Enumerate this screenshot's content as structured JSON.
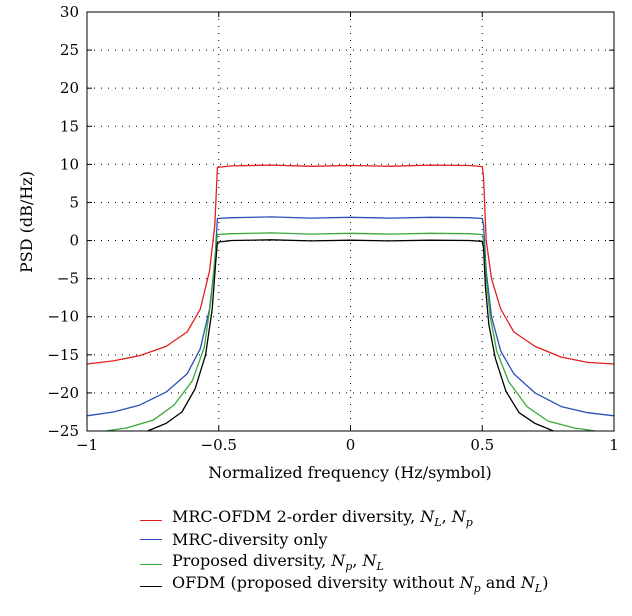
{
  "chart_data": {
    "type": "line",
    "title": "",
    "xlabel": "Normalized frequency (Hz/symbol)",
    "ylabel": "PSD (dB/Hz)",
    "xlim": [
      -1,
      1
    ],
    "ylim": [
      -25,
      30
    ],
    "xticks": [
      -1,
      -0.5,
      0,
      0.5,
      1
    ],
    "xtick_labels": [
      "−1",
      "−0.5",
      "0",
      "0.5",
      "1"
    ],
    "yticks": [
      30,
      25,
      20,
      15,
      10,
      5,
      0,
      -5,
      -10,
      -15,
      -20,
      -25
    ],
    "ytick_labels": [
      "30",
      "25",
      "20",
      "15",
      "10",
      "5",
      "0",
      "−5",
      "−10",
      "−15",
      "−20",
      "−25"
    ],
    "grid": true,
    "legend_position": "bottom",
    "series": [
      {
        "name": "MRC-OFDM 2-order diversity, N_L, N_p",
        "color": "#e02020",
        "points": [
          [
            -1,
            -16.2
          ],
          [
            -0.9,
            -15.8
          ],
          [
            -0.8,
            -15.1
          ],
          [
            -0.7,
            -13.9
          ],
          [
            -0.62,
            -12.0
          ],
          [
            -0.57,
            -9.0
          ],
          [
            -0.535,
            -4.0
          ],
          [
            -0.515,
            2.0
          ],
          [
            -0.505,
            9.6
          ],
          [
            -0.45,
            9.8
          ],
          [
            -0.3,
            9.9
          ],
          [
            -0.15,
            9.75
          ],
          [
            0,
            9.85
          ],
          [
            0.15,
            9.75
          ],
          [
            0.3,
            9.9
          ],
          [
            0.45,
            9.85
          ],
          [
            0.5,
            9.7
          ],
          [
            0.505,
            8.2
          ],
          [
            0.515,
            0.0
          ],
          [
            0.535,
            -5.0
          ],
          [
            0.57,
            -9.0
          ],
          [
            0.62,
            -12.0
          ],
          [
            0.7,
            -13.9
          ],
          [
            0.8,
            -15.3
          ],
          [
            0.9,
            -16.0
          ],
          [
            1,
            -16.2
          ]
        ]
      },
      {
        "name": "MRC-diversity only",
        "color": "#2a4fb5",
        "points": [
          [
            -1,
            -23.0
          ],
          [
            -0.9,
            -22.5
          ],
          [
            -0.8,
            -21.6
          ],
          [
            -0.7,
            -19.9
          ],
          [
            -0.62,
            -17.5
          ],
          [
            -0.57,
            -14.2
          ],
          [
            -0.535,
            -9.0
          ],
          [
            -0.515,
            -3.0
          ],
          [
            -0.505,
            2.9
          ],
          [
            -0.45,
            3.0
          ],
          [
            -0.3,
            3.1
          ],
          [
            -0.15,
            2.95
          ],
          [
            0,
            3.05
          ],
          [
            0.15,
            2.95
          ],
          [
            0.3,
            3.05
          ],
          [
            0.45,
            3.0
          ],
          [
            0.5,
            2.9
          ],
          [
            0.505,
            2.0
          ],
          [
            0.515,
            -4.0
          ],
          [
            0.535,
            -10.0
          ],
          [
            0.57,
            -14.5
          ],
          [
            0.62,
            -17.5
          ],
          [
            0.7,
            -20.0
          ],
          [
            0.8,
            -21.8
          ],
          [
            0.9,
            -22.6
          ],
          [
            1,
            -23.0
          ]
        ]
      },
      {
        "name": "Proposed diversity, N_p, N_L",
        "color": "#3aa83a",
        "points": [
          [
            -0.93,
            -25.0
          ],
          [
            -0.85,
            -24.6
          ],
          [
            -0.75,
            -23.6
          ],
          [
            -0.67,
            -21.6
          ],
          [
            -0.6,
            -18.4
          ],
          [
            -0.555,
            -14.0
          ],
          [
            -0.53,
            -8.0
          ],
          [
            -0.515,
            -2.5
          ],
          [
            -0.505,
            0.8
          ],
          [
            -0.45,
            0.9
          ],
          [
            -0.3,
            1.0
          ],
          [
            -0.15,
            0.85
          ],
          [
            0,
            0.95
          ],
          [
            0.15,
            0.85
          ],
          [
            0.3,
            0.95
          ],
          [
            0.45,
            0.9
          ],
          [
            0.5,
            0.8
          ],
          [
            0.505,
            0.0
          ],
          [
            0.515,
            -5.0
          ],
          [
            0.53,
            -10.0
          ],
          [
            0.555,
            -14.5
          ],
          [
            0.6,
            -18.5
          ],
          [
            0.67,
            -21.8
          ],
          [
            0.75,
            -23.7
          ],
          [
            0.85,
            -24.6
          ],
          [
            0.93,
            -25.0
          ]
        ]
      },
      {
        "name": "OFDM (proposed diversity without N_p and N_L)",
        "color": "#000000",
        "points": [
          [
            -0.77,
            -25.0
          ],
          [
            -0.7,
            -24.0
          ],
          [
            -0.64,
            -22.5
          ],
          [
            -0.59,
            -19.5
          ],
          [
            -0.55,
            -15.0
          ],
          [
            -0.525,
            -9.0
          ],
          [
            -0.512,
            -3.0
          ],
          [
            -0.505,
            -0.2
          ],
          [
            -0.45,
            0.0
          ],
          [
            -0.3,
            0.1
          ],
          [
            -0.15,
            -0.05
          ],
          [
            0,
            0.05
          ],
          [
            0.15,
            -0.05
          ],
          [
            0.3,
            0.05
          ],
          [
            0.45,
            0.0
          ],
          [
            0.5,
            -0.1
          ],
          [
            0.505,
            -1.0
          ],
          [
            0.512,
            -6.0
          ],
          [
            0.525,
            -11.0
          ],
          [
            0.55,
            -15.5
          ],
          [
            0.59,
            -19.8
          ],
          [
            0.64,
            -22.6
          ],
          [
            0.7,
            -24.0
          ],
          [
            0.77,
            -25.0
          ]
        ]
      }
    ]
  },
  "legend": {
    "item0": {
      "pre": "MRC-OFDM 2-order diversity, ",
      "v1": "N",
      "s1": "L",
      "mid": ", ",
      "v2": "N",
      "s2": "p",
      "post": ""
    },
    "item1": {
      "pre": "MRC-diversity only"
    },
    "item2": {
      "pre": "Proposed diversity, ",
      "v1": "N",
      "s1": "p",
      "mid": ", ",
      "v2": "N",
      "s2": "L",
      "post": ""
    },
    "item3": {
      "pre": "OFDM (proposed diversity without ",
      "v1": "N",
      "s1": "p",
      "mid": " and ",
      "v2": "N",
      "s2": "L",
      "post": ")"
    }
  }
}
